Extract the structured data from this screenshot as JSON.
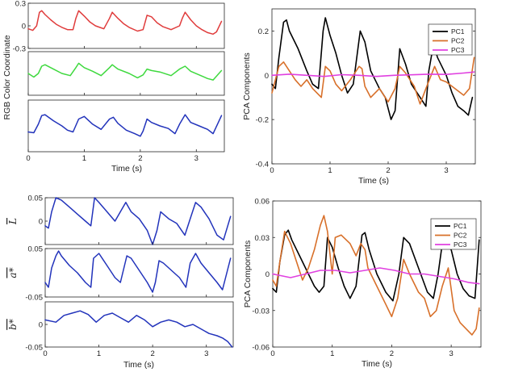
{
  "figure": {
    "panels": [
      "top-left",
      "top-right",
      "bottom-left",
      "bottom-right"
    ]
  },
  "chart_data": [
    {
      "type": "line",
      "id": "rgb",
      "ylabel": "RGB Color Coordinate",
      "xlabel": "Time (s)",
      "xlim": [
        0,
        3.5
      ],
      "xticks": [
        "0",
        "1",
        "2",
        "3"
      ],
      "shared_ylabel": true,
      "subplots": [
        {
          "name": "red",
          "color": "#e03c3c",
          "ylim": [
            -0.3,
            0.3
          ],
          "yticks": [
            [
              "0.3",
              0.3
            ],
            [
              "0",
              0
            ],
            [
              "-0.3",
              -0.3
            ]
          ],
          "x": [
            0,
            0.08,
            0.15,
            0.2,
            0.24,
            0.3,
            0.4,
            0.5,
            0.6,
            0.7,
            0.8,
            0.85,
            0.9,
            1.0,
            1.1,
            1.2,
            1.35,
            1.45,
            1.5,
            1.6,
            1.7,
            1.8,
            1.95,
            2.05,
            2.12,
            2.2,
            2.3,
            2.4,
            2.55,
            2.7,
            2.75,
            2.8,
            2.9,
            3.0,
            3.1,
            3.2,
            3.3,
            3.36,
            3.45
          ],
          "values": [
            -0.04,
            -0.06,
            0.0,
            0.18,
            0.2,
            0.15,
            0.08,
            0.02,
            -0.02,
            -0.05,
            -0.05,
            0.1,
            0.2,
            0.13,
            0.05,
            0.0,
            -0.04,
            0.1,
            0.18,
            0.1,
            0.03,
            -0.02,
            -0.07,
            -0.05,
            0.14,
            0.12,
            0.04,
            -0.01,
            -0.05,
            0.0,
            0.1,
            0.18,
            0.08,
            0.0,
            -0.05,
            -0.09,
            -0.11,
            -0.08,
            0.06
          ]
        },
        {
          "name": "green",
          "color": "#3fd93f",
          "ylim": [
            -0.3,
            0.3
          ],
          "yticks": [],
          "x": [
            0,
            0.1,
            0.18,
            0.24,
            0.3,
            0.45,
            0.6,
            0.75,
            0.85,
            0.9,
            1.0,
            1.15,
            1.3,
            1.45,
            1.5,
            1.6,
            1.8,
            1.95,
            2.05,
            2.12,
            2.2,
            2.35,
            2.55,
            2.7,
            2.8,
            2.9,
            3.05,
            3.2,
            3.3,
            3.45
          ],
          "values": [
            0.0,
            -0.05,
            0.0,
            0.1,
            0.12,
            0.06,
            0.0,
            -0.03,
            0.08,
            0.14,
            0.08,
            0.03,
            -0.03,
            0.08,
            0.12,
            0.06,
            0.0,
            -0.06,
            -0.02,
            0.06,
            0.04,
            0.02,
            -0.03,
            0.06,
            0.1,
            0.03,
            -0.02,
            -0.07,
            -0.09,
            0.04
          ]
        },
        {
          "name": "blue",
          "color": "#2233bb",
          "ylim": [
            -0.3,
            0.3
          ],
          "yticks": [],
          "x": [
            0,
            0.1,
            0.18,
            0.24,
            0.3,
            0.45,
            0.6,
            0.7,
            0.8,
            0.9,
            1.0,
            1.15,
            1.3,
            1.45,
            1.52,
            1.6,
            1.75,
            1.9,
            2.0,
            2.05,
            2.12,
            2.2,
            2.35,
            2.5,
            2.62,
            2.7,
            2.8,
            2.9,
            3.05,
            3.2,
            3.3,
            3.45
          ],
          "values": [
            -0.07,
            -0.08,
            0.02,
            0.12,
            0.13,
            0.06,
            0.0,
            -0.05,
            -0.07,
            0.08,
            0.11,
            0.02,
            -0.04,
            0.08,
            0.1,
            0.03,
            -0.05,
            -0.09,
            -0.12,
            -0.06,
            0.08,
            0.04,
            0.0,
            -0.03,
            -0.09,
            0.02,
            0.13,
            0.04,
            0.0,
            -0.04,
            -0.09,
            0.12
          ]
        }
      ]
    },
    {
      "type": "line",
      "id": "pca-rgb",
      "ylabel": "PCA Components",
      "xlabel": "Time (s)",
      "xlim": [
        0,
        3.5
      ],
      "ylim": [
        -0.4,
        0.3
      ],
      "xticks": [
        "0",
        "1",
        "2",
        "3"
      ],
      "yticks": [
        "0.2",
        "0",
        "-0.2",
        "-0.4"
      ],
      "legend": "top-right",
      "series": [
        {
          "name": "PC1",
          "color": "#000000",
          "x": [
            0,
            0.06,
            0.12,
            0.2,
            0.25,
            0.3,
            0.45,
            0.6,
            0.7,
            0.8,
            0.88,
            0.92,
            1.0,
            1.1,
            1.2,
            1.3,
            1.4,
            1.52,
            1.6,
            1.7,
            1.85,
            1.95,
            2.05,
            2.12,
            2.2,
            2.3,
            2.4,
            2.5,
            2.65,
            2.7,
            2.78,
            2.85,
            3.0,
            3.1,
            3.2,
            3.3,
            3.38,
            3.45
          ],
          "values": [
            -0.04,
            -0.06,
            0.08,
            0.24,
            0.25,
            0.2,
            0.12,
            0.02,
            -0.04,
            -0.06,
            0.2,
            0.26,
            0.18,
            0.1,
            0.0,
            -0.08,
            -0.04,
            0.2,
            0.15,
            0.02,
            -0.06,
            -0.1,
            -0.2,
            -0.16,
            0.12,
            0.05,
            -0.04,
            -0.08,
            -0.14,
            0.02,
            0.14,
            0.08,
            0.0,
            -0.08,
            -0.14,
            -0.16,
            -0.18,
            -0.1
          ]
        },
        {
          "name": "PC2",
          "color": "#d8702a",
          "x": [
            0,
            0.06,
            0.12,
            0.2,
            0.3,
            0.4,
            0.5,
            0.6,
            0.7,
            0.85,
            0.92,
            1.0,
            1.1,
            1.2,
            1.35,
            1.5,
            1.55,
            1.6,
            1.7,
            1.85,
            2.0,
            2.12,
            2.2,
            2.3,
            2.45,
            2.55,
            2.65,
            2.8,
            2.9,
            3.0,
            3.1,
            3.2,
            3.3,
            3.4,
            3.48
          ],
          "values": [
            -0.08,
            -0.02,
            0.04,
            0.06,
            0.02,
            -0.02,
            -0.05,
            -0.02,
            -0.06,
            -0.1,
            0.04,
            0.02,
            -0.04,
            -0.07,
            -0.02,
            0.04,
            0.03,
            -0.05,
            -0.1,
            -0.06,
            -0.12,
            -0.06,
            0.04,
            0.01,
            -0.05,
            -0.13,
            -0.06,
            0.04,
            -0.02,
            -0.03,
            -0.05,
            -0.07,
            -0.09,
            -0.06,
            0.08
          ]
        },
        {
          "name": "PC3",
          "color": "#e040e0",
          "x": [
            0,
            0.3,
            0.6,
            0.9,
            1.2,
            1.5,
            1.8,
            2.1,
            2.4,
            2.7,
            3.0,
            3.3,
            3.48
          ],
          "values": [
            0.0,
            0.005,
            0.0,
            -0.005,
            0.003,
            0.0,
            -0.005,
            0.0,
            0.002,
            0.005,
            0.004,
            0.01,
            0.015
          ]
        }
      ]
    },
    {
      "type": "line",
      "id": "lab",
      "xlabel": "Time (s)",
      "xlim": [
        0,
        3.5
      ],
      "xticks": [
        "0",
        "1",
        "2",
        "3"
      ],
      "subplots": [
        {
          "name": "L",
          "label": "L",
          "color": "#2233bb",
          "ylim": [
            -0.05,
            0.05
          ],
          "yticks": [
            [
              "0.05",
              0.05
            ],
            [
              "0",
              0
            ]
          ],
          "x": [
            0,
            0.06,
            0.12,
            0.2,
            0.3,
            0.45,
            0.6,
            0.75,
            0.85,
            0.92,
            1.0,
            1.15,
            1.3,
            1.45,
            1.5,
            1.6,
            1.75,
            1.9,
            2.0,
            2.08,
            2.15,
            2.3,
            2.45,
            2.6,
            2.7,
            2.8,
            2.9,
            3.05,
            3.2,
            3.32,
            3.45
          ],
          "values": [
            -0.01,
            -0.015,
            0.02,
            0.05,
            0.045,
            0.03,
            0.015,
            0.0,
            -0.01,
            0.05,
            0.04,
            0.02,
            0.0,
            0.03,
            0.04,
            0.02,
            0.005,
            -0.02,
            -0.05,
            -0.02,
            0.02,
            0.005,
            -0.005,
            -0.03,
            0.005,
            0.04,
            0.03,
            0.005,
            -0.03,
            -0.04,
            0.01
          ]
        },
        {
          "name": "a*",
          "label": "a*",
          "color": "#2233bb",
          "ylim": [
            -0.05,
            0.05
          ],
          "yticks": [
            [
              "0.05",
              0.05
            ],
            [
              "-0.05",
              -0.05
            ]
          ],
          "x": [
            0,
            0.06,
            0.12,
            0.2,
            0.25,
            0.3,
            0.45,
            0.6,
            0.75,
            0.85,
            0.9,
            1.0,
            1.15,
            1.3,
            1.4,
            1.52,
            1.6,
            1.75,
            1.9,
            2.0,
            2.05,
            2.12,
            2.2,
            2.35,
            2.5,
            2.62,
            2.7,
            2.8,
            2.9,
            3.05,
            3.2,
            3.3,
            3.45
          ],
          "values": [
            -0.02,
            -0.03,
            0.01,
            0.035,
            0.045,
            0.035,
            0.015,
            0.0,
            -0.02,
            -0.03,
            0.03,
            0.04,
            0.015,
            -0.01,
            -0.02,
            0.035,
            0.03,
            0.005,
            -0.02,
            -0.04,
            -0.02,
            0.025,
            0.02,
            0.005,
            -0.01,
            -0.03,
            0.02,
            0.04,
            0.02,
            0.0,
            -0.02,
            -0.035,
            0.03
          ]
        },
        {
          "name": "b*",
          "label": "b*",
          "color": "#2233bb",
          "ylim": [
            -0.05,
            0.05
          ],
          "yticks": [
            [
              "0",
              0
            ],
            [
              "-0.05",
              -0.05
            ]
          ],
          "x": [
            0,
            0.2,
            0.35,
            0.5,
            0.65,
            0.8,
            0.95,
            1.1,
            1.25,
            1.4,
            1.55,
            1.7,
            1.85,
            2.0,
            2.15,
            2.3,
            2.45,
            2.6,
            2.75,
            2.9,
            3.05,
            3.2,
            3.3,
            3.4,
            3.48
          ],
          "values": [
            0.01,
            0.005,
            0.02,
            0.025,
            0.03,
            0.022,
            0.005,
            0.02,
            0.025,
            0.015,
            0.005,
            0.02,
            0.01,
            -0.005,
            0.005,
            0.01,
            0.005,
            -0.005,
            0.0,
            -0.01,
            -0.02,
            -0.025,
            -0.03,
            -0.038,
            -0.05
          ]
        }
      ]
    },
    {
      "type": "line",
      "id": "pca-lab",
      "ylabel": "PCA Components",
      "xlabel": "Time (s)",
      "xlim": [
        0,
        3.5
      ],
      "ylim": [
        -0.06,
        0.06
      ],
      "xticks": [
        "0",
        "1",
        "2",
        "3"
      ],
      "yticks": [
        "0.06",
        "0.03",
        "0",
        "-0.03",
        "-0.06"
      ],
      "legend": "top-right",
      "series": [
        {
          "name": "PC1",
          "color": "#000000",
          "x": [
            0,
            0.06,
            0.12,
            0.2,
            0.26,
            0.32,
            0.45,
            0.6,
            0.7,
            0.78,
            0.86,
            0.92,
            1.0,
            1.1,
            1.2,
            1.3,
            1.4,
            1.5,
            1.55,
            1.62,
            1.75,
            1.9,
            2.02,
            2.12,
            2.2,
            2.3,
            2.45,
            2.6,
            2.7,
            2.78,
            2.85,
            3.0,
            3.1,
            3.2,
            3.3,
            3.4,
            3.47
          ],
          "values": [
            -0.012,
            -0.015,
            0.01,
            0.032,
            0.036,
            0.028,
            0.015,
            0.0,
            -0.01,
            -0.015,
            -0.01,
            0.03,
            0.022,
            0.005,
            -0.01,
            -0.02,
            -0.01,
            0.032,
            0.034,
            0.02,
            0.0,
            -0.015,
            -0.022,
            0.0,
            0.03,
            0.025,
            0.005,
            -0.015,
            -0.02,
            0.0,
            0.025,
            0.02,
            0.0,
            -0.012,
            -0.018,
            -0.02,
            0.028
          ]
        },
        {
          "name": "PC2",
          "color": "#d8702a",
          "x": [
            0,
            0.06,
            0.12,
            0.2,
            0.3,
            0.4,
            0.5,
            0.6,
            0.7,
            0.8,
            0.86,
            0.92,
            1.0,
            1.05,
            1.15,
            1.3,
            1.4,
            1.48,
            1.55,
            1.6,
            1.75,
            1.9,
            2.0,
            2.1,
            2.2,
            2.3,
            2.45,
            2.55,
            2.65,
            2.75,
            2.85,
            2.95,
            3.05,
            3.15,
            3.25,
            3.35,
            3.42,
            3.47
          ],
          "values": [
            -0.005,
            -0.01,
            0.01,
            0.035,
            0.025,
            0.01,
            -0.005,
            0.005,
            0.02,
            0.04,
            0.048,
            0.035,
            0.0,
            0.03,
            0.032,
            0.025,
            0.015,
            0.025,
            0.02,
            0.005,
            -0.01,
            -0.025,
            -0.035,
            -0.02,
            0.012,
            0.0,
            -0.015,
            -0.02,
            -0.035,
            -0.03,
            -0.01,
            0.005,
            -0.03,
            -0.04,
            -0.045,
            -0.05,
            -0.045,
            -0.028
          ]
        },
        {
          "name": "PC3",
          "color": "#e040e0",
          "x": [
            0,
            0.3,
            0.55,
            0.8,
            1.05,
            1.3,
            1.55,
            1.8,
            2.05,
            2.3,
            2.55,
            2.8,
            3.05,
            3.3,
            3.47
          ],
          "values": [
            0.0,
            -0.003,
            0.0,
            0.003,
            0.003,
            0.001,
            0.003,
            0.005,
            0.003,
            0.0,
            0.0,
            -0.002,
            -0.004,
            -0.007,
            -0.008
          ]
        }
      ]
    }
  ]
}
